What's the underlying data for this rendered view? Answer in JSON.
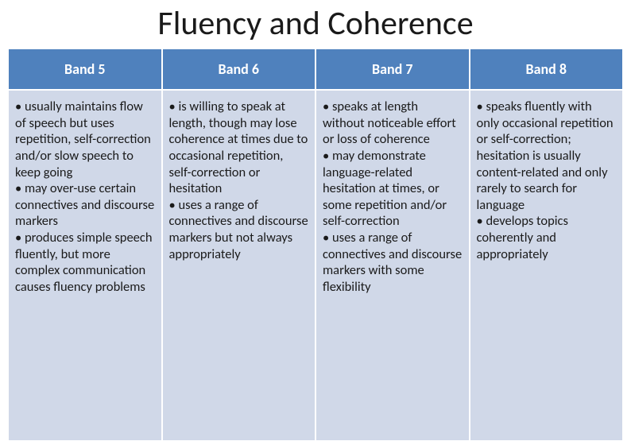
{
  "title": "Fluency and Coherence",
  "table": {
    "type": "table",
    "header_bg": "#4f81bd",
    "body_bg": "#d0d8e8",
    "columns": [
      "Band 5",
      "Band 6",
      "Band 7",
      "Band 8"
    ],
    "rows": [
      {
        "bullets": [
          "usually maintains flow of speech but uses repetition, self-correction and/or slow speech to keep going",
          "may over-use certain connectives and discourse markers",
          "produces simple speech fluently, but more complex communication causes fluency problems"
        ]
      },
      {
        "bullets": [
          "is willing to speak at length, though may lose coherence at times due to occasional repetition, self-correction or hesitation",
          "uses a range of connectives and discourse markers but not always appropriately"
        ]
      },
      {
        "bullets": [
          "speaks at length without noticeable effort or loss of coherence",
          "may demonstrate language-related hesitation at times, or some repetition and/or self-correction",
          " uses a range of connectives and discourse markers with some flexibility"
        ]
      },
      {
        "bullets": [
          "speaks fluently with only occasional repetition or self-correction; hesitation is usually content-related and only rarely to search for language",
          "develops topics coherently and appropriately"
        ]
      }
    ]
  }
}
